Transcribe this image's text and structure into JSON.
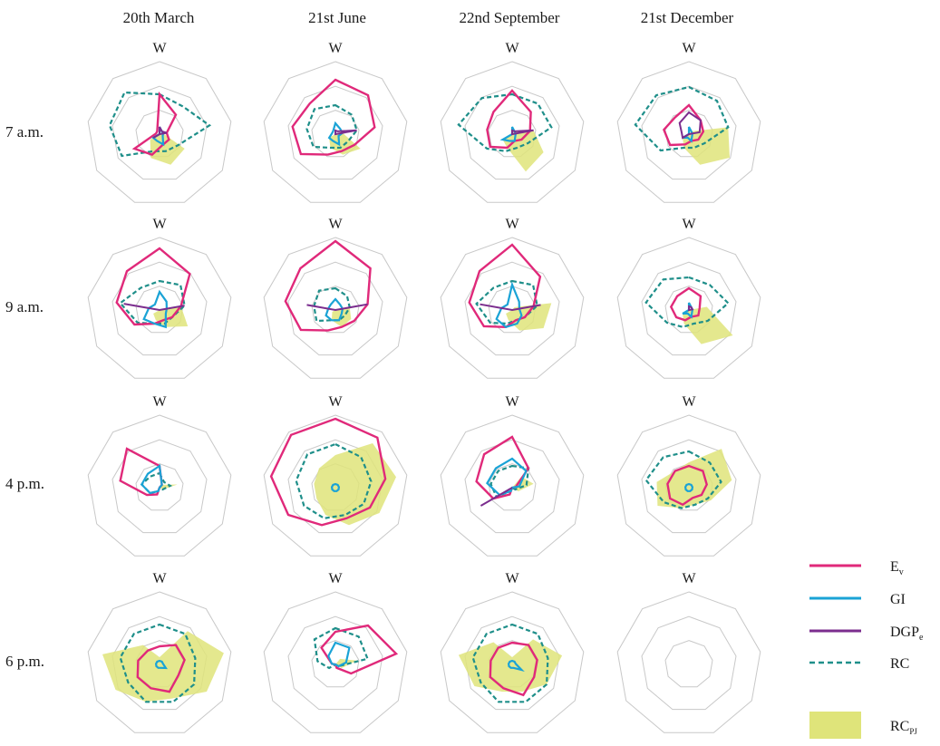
{
  "columns": [
    "20th March",
    "21st June",
    "22nd September",
    "21st December"
  ],
  "rows": [
    "7 a.m.",
    "9 a.m.",
    "4 p.m.",
    "6 p.m."
  ],
  "direction_label": "W",
  "legend": {
    "ev": "E",
    "ev_sub": "v",
    "gi": "GI",
    "dgp": "DGP",
    "dgp_sub": "e",
    "rc": "RC",
    "rcpj": "RC",
    "rcpj_sub": "PJ"
  },
  "colors": {
    "ev": "#e0297a",
    "gi": "#1aa3d6",
    "dgp": "#7b2d8e",
    "rc": "#1f8f8a",
    "rcpj": "#dfe47a",
    "grid": "#c8c8c8"
  },
  "chart_data": {
    "type": "radar",
    "axes_count": 9,
    "rlim": [
      0,
      1
    ],
    "grid_levels": [
      0.33,
      0.66,
      1.0
    ],
    "cells": [
      [
        {
          "Ev": [
            0.55,
            0.35,
            0.1,
            0.15,
            0.15,
            0.3,
            0.4,
            0.05,
            0.05
          ],
          "GI": [
            0.1,
            0.05,
            0.05,
            0.05,
            0.15,
            0.1,
            0.1,
            0,
            0
          ],
          "RC": [
            0.55,
            0.5,
            0.7,
            0.3,
            0.25,
            0.25,
            0.6,
            0.7,
            0.75
          ],
          "RCPJ": [
            0,
            0,
            0.05,
            0.4,
            0.45,
            0.35,
            0.15,
            0,
            0
          ],
          "DGP": [
            0.1,
            0.05,
            0.1,
            0,
            0,
            0,
            0.1,
            0,
            0
          ]
        },
        {
          "Ev": [
            0.75,
            0.7,
            0.55,
            0.3,
            0.25,
            0.3,
            0.55,
            0.6,
            0.55
          ],
          "GI": [
            0.15,
            0.1,
            0.1,
            0.05,
            0.15,
            0.1,
            0.1,
            0.05,
            0.05
          ],
          "RC": [
            0.4,
            0.35,
            0.3,
            0.2,
            0.2,
            0.2,
            0.35,
            0.4,
            0.45
          ],
          "RCPJ": [
            0,
            0,
            0.1,
            0.4,
            0.3,
            0.2,
            0.1,
            0,
            0
          ],
          "DGP": [
            0.05,
            0.05,
            0.3,
            0,
            0,
            0,
            0,
            0,
            0
          ]
        },
        {
          "Ev": [
            0.6,
            0.4,
            0.25,
            0.15,
            0.1,
            0.2,
            0.35,
            0.35,
            0.4
          ],
          "GI": [
            0.1,
            0.05,
            0.05,
            0.05,
            0.1,
            0.1,
            0.15,
            0,
            0
          ],
          "RC": [
            0.55,
            0.55,
            0.55,
            0.25,
            0.2,
            0.25,
            0.4,
            0.75,
            0.65
          ],
          "RCPJ": [
            0,
            0.05,
            0.3,
            0.5,
            0.55,
            0.2,
            0.15,
            0,
            0
          ],
          "DGP": [
            0.05,
            0.05,
            0.3,
            0,
            0,
            0,
            0,
            0,
            0
          ]
        },
        {
          "Ev": [
            0.4,
            0.25,
            0.2,
            0.15,
            0.1,
            0.15,
            0.3,
            0.35,
            0.3
          ],
          "GI": [
            0.1,
            0.05,
            0.05,
            0.05,
            0.1,
            0.05,
            0.1,
            0,
            0
          ],
          "RC": [
            0.65,
            0.6,
            0.55,
            0.25,
            0.2,
            0.2,
            0.45,
            0.75,
            0.7
          ],
          "RCPJ": [
            0,
            0.05,
            0.55,
            0.65,
            0.45,
            0.2,
            0.1,
            0,
            0
          ],
          "DGP": [
            0.3,
            0.25,
            0.15,
            0,
            0,
            0,
            0.1,
            0.1,
            0.2
          ]
        }
      ],
      [
        {
          "Ev": [
            0.85,
            0.65,
            0.3,
            0.2,
            0.15,
            0.2,
            0.4,
            0.6,
            0.7
          ],
          "GI": [
            0.25,
            0.15,
            0.1,
            0.1,
            0.25,
            0.2,
            0.25,
            0.15,
            0.1
          ],
          "RC": [
            0.4,
            0.45,
            0.35,
            0.2,
            0.2,
            0.2,
            0.35,
            0.55,
            0.4
          ],
          "RCPJ": [
            0,
            0,
            0.3,
            0.45,
            0.25,
            0.15,
            0.1,
            0,
            0
          ],
          "DGP": [
            0,
            0,
            0.35,
            0,
            0,
            0,
            0,
            0.5,
            0
          ]
        },
        {
          "Ev": [
            0.95,
            0.75,
            0.45,
            0.3,
            0.25,
            0.3,
            0.55,
            0.7,
            0.75
          ],
          "GI": [
            0.15,
            0.1,
            0.1,
            0.1,
            0.15,
            0.15,
            0.15,
            0.1,
            0.1
          ],
          "RC": [
            0.3,
            0.25,
            0.2,
            0.15,
            0.15,
            0.15,
            0.3,
            0.3,
            0.35
          ],
          "RCPJ": [
            0,
            0,
            0.2,
            0.25,
            0.25,
            0.15,
            0.05,
            0,
            0
          ],
          "DGP": [
            0,
            0,
            0.45,
            0,
            0,
            0,
            0,
            0.4,
            0
          ]
        },
        {
          "Ev": [
            0.9,
            0.6,
            0.3,
            0.2,
            0.15,
            0.25,
            0.45,
            0.6,
            0.7
          ],
          "GI": [
            0.35,
            0.15,
            0.1,
            0.15,
            0.2,
            0.25,
            0.25,
            0.15,
            0.1
          ],
          "RC": [
            0.4,
            0.45,
            0.35,
            0.2,
            0.15,
            0.2,
            0.35,
            0.5,
            0.4
          ],
          "RCPJ": [
            0,
            0.05,
            0.55,
            0.5,
            0.3,
            0.15,
            0.1,
            0,
            0
          ],
          "DGP": [
            0,
            0,
            0.4,
            0,
            0,
            0,
            0,
            0.45,
            0
          ]
        },
        {
          "Ev": [
            0.3,
            0.25,
            0.15,
            0.15,
            0.1,
            0.15,
            0.2,
            0.25,
            0.25
          ],
          "GI": [
            0.1,
            0.05,
            0.05,
            0.05,
            0.1,
            0.05,
            0.1,
            0,
            0
          ],
          "RC": [
            0.45,
            0.45,
            0.55,
            0.3,
            0.2,
            0.25,
            0.35,
            0.6,
            0.55
          ],
          "RCPJ": [
            0,
            0,
            0.25,
            0.7,
            0.5,
            0.2,
            0.1,
            0,
            0
          ],
          "DGP": [
            0.05,
            0.05,
            0.05,
            0,
            0,
            0,
            0,
            0,
            0
          ]
        }
      ],
      [
        {
          "Ev": [
            0.3,
            0.05,
            0,
            0,
            0,
            0.1,
            0.2,
            0.55,
            0.7
          ],
          "GI": [
            0.3,
            0.05,
            0,
            0,
            0,
            0.05,
            0.15,
            0.25,
            0.25
          ],
          "RC": [
            0.2,
            0.1,
            0.15,
            0.05,
            0,
            0.05,
            0.15,
            0.25,
            0.2
          ],
          "RCPJ": [
            0,
            0.05,
            0.25,
            0.05,
            0,
            0,
            0,
            0,
            0
          ],
          "DGP": [
            0,
            0,
            0,
            0,
            0,
            0,
            0,
            0,
            0
          ]
        },
        {
          "Ev": [
            0.95,
            0.9,
            0.7,
            0.55,
            0.45,
            0.55,
            0.75,
            0.9,
            0.95
          ],
          "GI": [
            0.05,
            0.05,
            0.05,
            0.05,
            0.05,
            0.05,
            0.05,
            0.05,
            0.05
          ],
          "RC": [
            0.6,
            0.55,
            0.5,
            0.45,
            0.4,
            0.45,
            0.5,
            0.55,
            0.6
          ],
          "RCPJ": [
            0.45,
            0.8,
            0.85,
            0.7,
            0.55,
            0.4,
            0.3,
            0.3,
            0.35
          ],
          "DGP": [
            0,
            0,
            0,
            0,
            0,
            0,
            0,
            0,
            0
          ]
        },
        {
          "Ev": [
            0.7,
            0.35,
            0.05,
            0,
            0,
            0.1,
            0.3,
            0.5,
            0.6
          ],
          "GI": [
            0.4,
            0.3,
            0.1,
            0,
            0,
            0.05,
            0.2,
            0.35,
            0.35
          ],
          "RC": [
            0.3,
            0.35,
            0.2,
            0.05,
            0,
            0.05,
            0.25,
            0.3,
            0.3
          ],
          "RCPJ": [
            0,
            0.2,
            0.3,
            0.1,
            0,
            0,
            0,
            0,
            0
          ],
          "DGP": [
            0,
            0,
            0,
            0,
            0,
            0,
            0.5,
            0,
            0
          ]
        },
        {
          "Ev": [
            0.3,
            0.3,
            0.25,
            0.2,
            0.15,
            0.25,
            0.3,
            0.3,
            0.3
          ],
          "GI": [
            0.05,
            0.05,
            0.05,
            0.05,
            0.05,
            0.05,
            0.05,
            0.05,
            0.05
          ],
          "RC": [
            0.5,
            0.45,
            0.45,
            0.3,
            0.25,
            0.3,
            0.4,
            0.6,
            0.55
          ],
          "RCPJ": [
            0.35,
            0.7,
            0.6,
            0.35,
            0.25,
            0.3,
            0.5,
            0.45,
            0.3
          ],
          "DGP": [
            0,
            0,
            0,
            0,
            0,
            0,
            0,
            0,
            0
          ]
        }
      ],
      [
        {
          "Ev": [
            0.25,
            0.35,
            0.35,
            0.3,
            0.4,
            0.35,
            0.35,
            0.3,
            0.25
          ],
          "GI": [
            0.05,
            0.05,
            0.05,
            0.1,
            0.05,
            0.05,
            0.05,
            0.05,
            0.05
          ],
          "RC": [
            0.55,
            0.55,
            0.5,
            0.55,
            0.55,
            0.55,
            0.5,
            0.55,
            0.55
          ],
          "RCPJ": [
            0.1,
            0.6,
            0.9,
            0.75,
            0.5,
            0.55,
            0.7,
            0.8,
            0.35
          ],
          "DGP": [
            0,
            0,
            0,
            0,
            0,
            0,
            0,
            0,
            0
          ]
        },
        {
          "Ev": [
            0.45,
            0.7,
            0.85,
            0.25,
            0.05,
            0,
            0,
            0.05,
            0.3
          ],
          "GI": [
            0.3,
            0.3,
            0.15,
            0.05,
            0,
            0,
            0,
            0.05,
            0.15
          ],
          "RC": [
            0.5,
            0.5,
            0.45,
            0.05,
            0,
            0,
            0.1,
            0.25,
            0.45
          ],
          "RCPJ": [
            0,
            0.1,
            0.3,
            0.1,
            0,
            0,
            0,
            0,
            0
          ],
          "DGP": [
            0,
            0,
            0,
            0,
            0,
            0,
            0,
            0,
            0
          ]
        },
        {
          "Ev": [
            0.3,
            0.35,
            0.35,
            0.35,
            0.45,
            0.35,
            0.35,
            0.3,
            0.3
          ],
          "GI": [
            0.05,
            0.05,
            0.05,
            0.15,
            0.05,
            0.05,
            0.05,
            0.05,
            0.05
          ],
          "RC": [
            0.55,
            0.55,
            0.5,
            0.55,
            0.55,
            0.55,
            0.5,
            0.55,
            0.55
          ],
          "RCPJ": [
            0.1,
            0.45,
            0.7,
            0.55,
            0.4,
            0.4,
            0.6,
            0.75,
            0.4
          ],
          "DGP": [
            0,
            0,
            0,
            0,
            0,
            0,
            0,
            0,
            0
          ]
        },
        {
          "Ev": [
            0,
            0,
            0,
            0,
            0,
            0,
            0,
            0,
            0
          ],
          "GI": [
            0,
            0,
            0,
            0,
            0,
            0,
            0,
            0,
            0
          ],
          "RC": [
            0,
            0,
            0,
            0,
            0,
            0,
            0,
            0,
            0
          ],
          "RCPJ": [
            0,
            0,
            0,
            0,
            0,
            0,
            0,
            0,
            0
          ],
          "DGP": [
            0,
            0,
            0,
            0,
            0,
            0,
            0,
            0,
            0
          ]
        }
      ]
    ]
  }
}
